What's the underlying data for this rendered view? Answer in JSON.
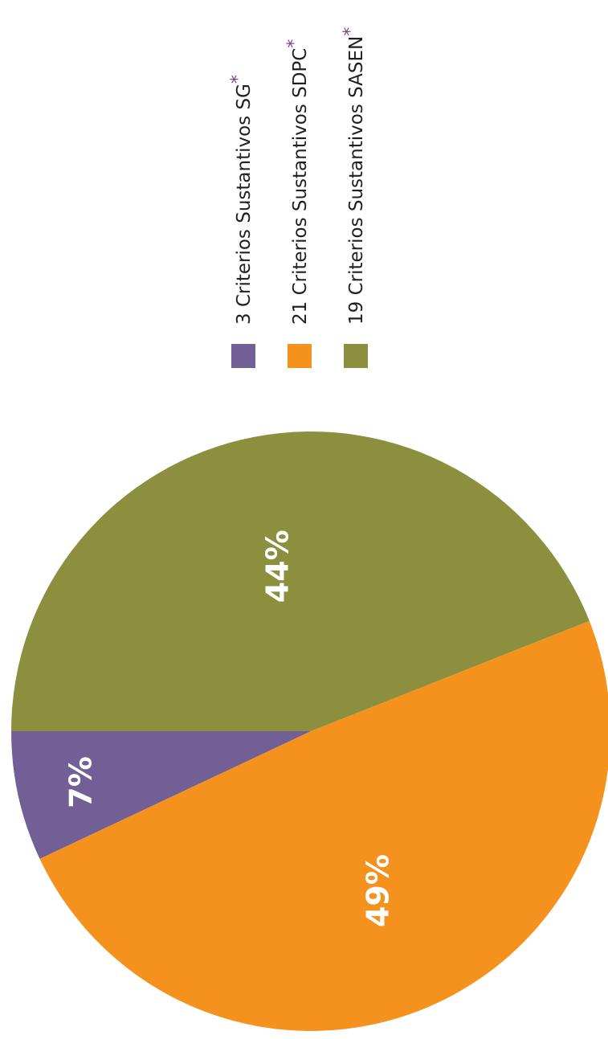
{
  "chart_data": {
    "type": "pie",
    "orientation": "rotated 90 degrees counter-clockwise",
    "title": "",
    "slices": [
      {
        "name": "3 Criterios Sustantivos SG",
        "count": 3,
        "value": 7,
        "label": "7%",
        "color": "#725f96"
      },
      {
        "name": "21 Criterios Sustantivos SDPC",
        "count": 21,
        "value": 49,
        "label": "49%",
        "color": "#f5921e"
      },
      {
        "name": "19 Criterios Sustantivos SASEN",
        "count": 19,
        "value": 44,
        "label": "44%",
        "color": "#8b8f3e"
      }
    ],
    "legend": {
      "placement": "top",
      "items": [
        {
          "text": "3 Criterios Sustantivos SG",
          "marker": "*",
          "color": "#725f96"
        },
        {
          "text": "21 Criterios Sustantivos SDPC",
          "marker": "*",
          "color": "#f5921e"
        },
        {
          "text": "19 Criterios Sustantivos SASEN",
          "marker": "*",
          "color": "#8b8f3e"
        }
      ],
      "marker_color": "#7b3f8f"
    }
  }
}
